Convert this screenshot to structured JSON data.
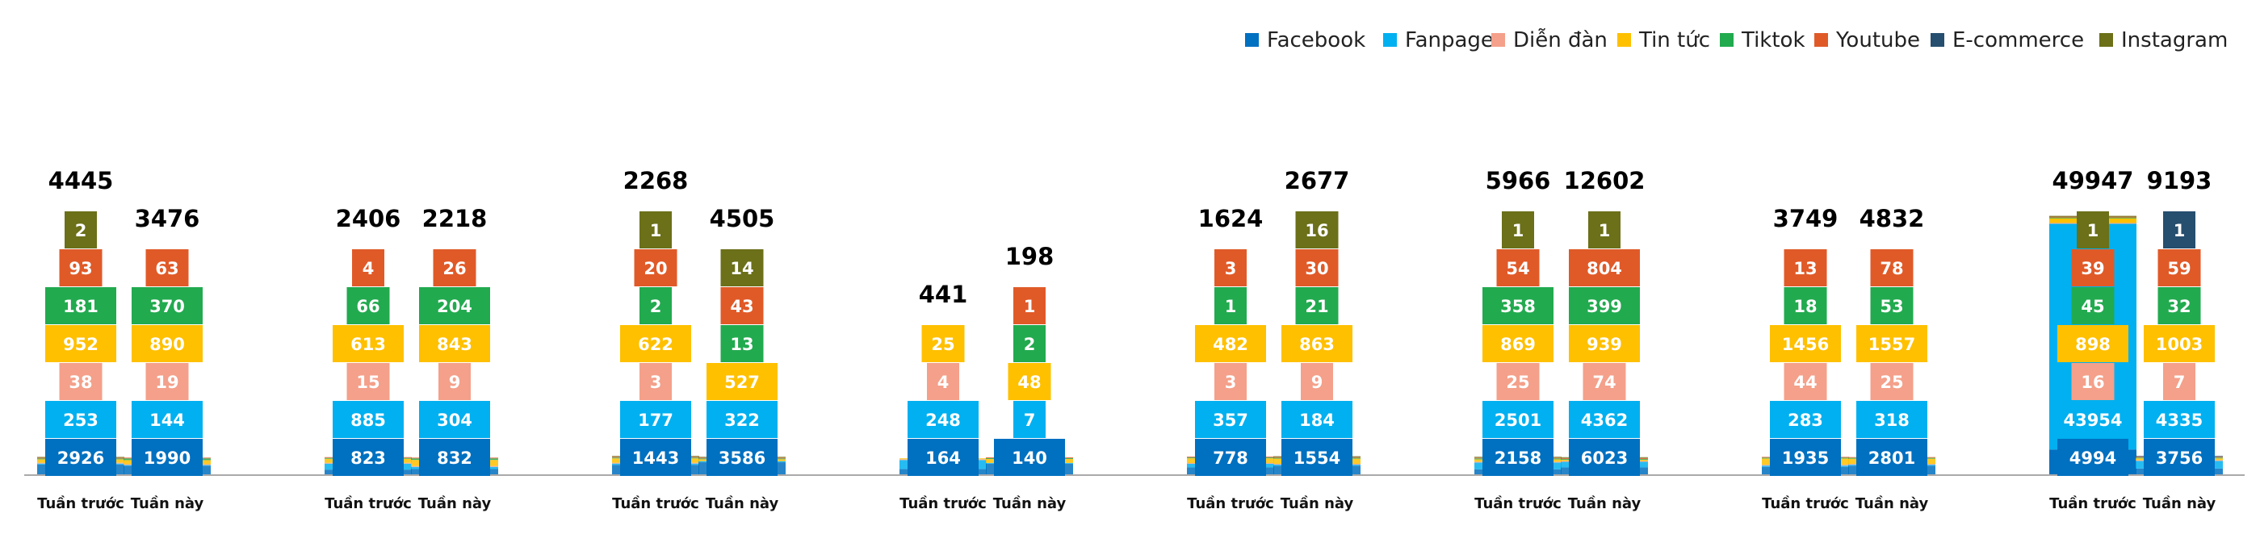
{
  "chart_data": {
    "type": "bar",
    "subtype": "stacked-bar-with-labeled-segment-blocks",
    "title": "",
    "xlabel": "",
    "ylabel": "",
    "legend_position": "top-right",
    "grid": false,
    "series_names": [
      "Facebook",
      "Fanpage",
      "Diễn đàn",
      "Tin tức",
      "Tiktok",
      "Youtube",
      "E-commerce",
      "Instagram"
    ],
    "colors": {
      "Facebook": "#0070c0",
      "Fanpage": "#00b0f0",
      "Diễn đàn": "#f4a08a",
      "Tin tức": "#ffc000",
      "Tiktok": "#22aa4f",
      "Youtube": "#e05a28",
      "E-commerce": "#264e6e",
      "Instagram": "#6b7019"
    },
    "group_period_labels": [
      "Tuần trước",
      "Tuần này"
    ],
    "groups": [
      {
        "bars": [
          {
            "label": "Tuần trước",
            "total": "4445",
            "values": {
              "Facebook": 2926,
              "Fanpage": 253,
              "Diễn đàn": 38,
              "Tin tức": 952,
              "Tiktok": 181,
              "Youtube": 93,
              "Instagram": 2
            }
          },
          {
            "label": "Tuần này",
            "total": "3476",
            "values": {
              "Facebook": 1990,
              "Fanpage": 144,
              "Diễn đàn": 19,
              "Tin tức": 890,
              "Tiktok": 370,
              "Youtube": 63
            }
          }
        ]
      },
      {
        "bars": [
          {
            "label": "Tuần trước",
            "total": "2406",
            "values": {
              "Facebook": 823,
              "Fanpage": 885,
              "Diễn đàn": 15,
              "Tin tức": 613,
              "Tiktok": 66,
              "Youtube": 4
            }
          },
          {
            "label": "Tuần này",
            "total": "2218",
            "values": {
              "Facebook": 832,
              "Fanpage": 304,
              "Diễn đàn": 9,
              "Tin tức": 843,
              "Tiktok": 204,
              "Youtube": 26
            }
          }
        ]
      },
      {
        "bars": [
          {
            "label": "Tuần trước",
            "total": "2268",
            "values": {
              "Facebook": 1443,
              "Fanpage": 177,
              "Diễn đàn": 3,
              "Tin tức": 622,
              "Tiktok": 2,
              "Youtube": 20,
              "Instagram": 1
            }
          },
          {
            "label": "Tuần này",
            "total": "4505",
            "values": {
              "Facebook": 3586,
              "Fanpage": 322,
              "Tin tức": 527,
              "Tiktok": 13,
              "Youtube": 43,
              "Instagram": 14
            }
          }
        ]
      },
      {
        "bars": [
          {
            "label": "Tuần trước",
            "total": "441",
            "values": {
              "Facebook": 164,
              "Fanpage": 248,
              "Diễn đàn": 4,
              "Tin tức": 25
            }
          },
          {
            "label": "Tuần này",
            "total": "198",
            "values": {
              "Facebook": 140,
              "Fanpage": 7,
              "Tin tức": 48,
              "Tiktok": 2,
              "Youtube": 1
            }
          }
        ]
      },
      {
        "bars": [
          {
            "label": "Tuần trước",
            "total": "1624",
            "values": {
              "Facebook": 778,
              "Fanpage": 357,
              "Diễn đàn": 3,
              "Tin tức": 482,
              "Tiktok": 1,
              "Youtube": 3
            }
          },
          {
            "label": "Tuần này",
            "total": "2677",
            "values": {
              "Facebook": 1554,
              "Fanpage": 184,
              "Diễn đàn": 9,
              "Tin tức": 863,
              "Tiktok": 21,
              "Youtube": 30,
              "Instagram": 16
            }
          }
        ]
      },
      {
        "bars": [
          {
            "label": "Tuần trước",
            "total": "5966",
            "values": {
              "Facebook": 2158,
              "Fanpage": 2501,
              "Diễn đàn": 25,
              "Tin tức": 869,
              "Tiktok": 358,
              "Youtube": 54,
              "Instagram": 1
            }
          },
          {
            "label": "Tuần này",
            "total": "12602",
            "values": {
              "Facebook": 6023,
              "Fanpage": 4362,
              "Diễn đàn": 74,
              "Tin tức": 939,
              "Tiktok": 399,
              "Youtube": 804,
              "Instagram": 1
            }
          }
        ]
      },
      {
        "bars": [
          {
            "label": "Tuần trước",
            "total": "3749",
            "values": {
              "Facebook": 1935,
              "Fanpage": 283,
              "Diễn đàn": 44,
              "Tin tức": 1456,
              "Tiktok": 18,
              "Youtube": 13
            }
          },
          {
            "label": "Tuần này",
            "total": "4832",
            "values": {
              "Facebook": 2801,
              "Fanpage": 318,
              "Diễn đàn": 25,
              "Tin tức": 1557,
              "Tiktok": 53,
              "Youtube": 78
            }
          }
        ]
      },
      {
        "bars": [
          {
            "label": "Tuần trước",
            "total": "49947",
            "values": {
              "Facebook": 4994,
              "Fanpage": 43954,
              "Diễn đàn": 16,
              "Tin tức": 898,
              "Tiktok": 45,
              "Youtube": 39,
              "Instagram": 1
            }
          },
          {
            "label": "Tuần này",
            "total": "9193",
            "values": {
              "Facebook": 3756,
              "Fanpage": 4335,
              "Diễn đàn": 7,
              "Tin tức": 1003,
              "Tiktok": 32,
              "Youtube": 59,
              "E-commerce": 1
            }
          }
        ]
      }
    ]
  }
}
